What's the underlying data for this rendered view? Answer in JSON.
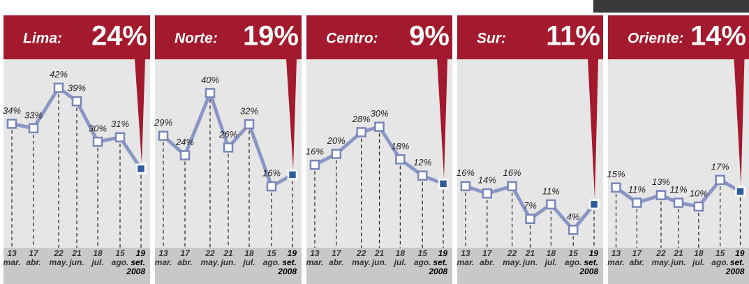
{
  "chart_data": [
    {
      "type": "line",
      "title": "Lima:",
      "categories": [
        "13\nmar.",
        "17\nabr.",
        "22\nmay.",
        "21\njun.",
        "18\njul.",
        "15\nago.",
        "19\nset.\n2008"
      ],
      "series": [
        {
          "color": "#8a97c4",
          "values": [
            34,
            33,
            42,
            39,
            30,
            31,
            24
          ],
          "value_labels": [
            "34%",
            "33%",
            "42%",
            "39%",
            "30%",
            "31%",
            "24%"
          ]
        }
      ],
      "ylim": [
        8,
        46
      ]
    },
    {
      "type": "line",
      "title": "Norte:",
      "categories": [
        "13\nmar.",
        "17\nabr.",
        "22\nmay.",
        "21\njun.",
        "18\njul.",
        "15\nago.",
        "19\nset.\n2008"
      ],
      "series": [
        {
          "color": "#8a97c4",
          "values": [
            29,
            24,
            40,
            26,
            32,
            16,
            19
          ],
          "value_labels": [
            "29%",
            "24%",
            "40%",
            "26%",
            "32%",
            "16%",
            "19%"
          ]
        }
      ],
      "ylim": [
        2,
        46
      ]
    },
    {
      "type": "line",
      "title": "Centro:",
      "categories": [
        "13\nmar.",
        "17\nabr.",
        "22\nmay.",
        "21\njun.",
        "18\njul.",
        "15\nago.",
        "19\nset.\n2008"
      ],
      "series": [
        {
          "color": "#8a97c4",
          "values": [
            16,
            20,
            28,
            30,
            18,
            12,
            9
          ],
          "value_labels": [
            "16%",
            "20%",
            "28%",
            "30%",
            "18%",
            "12%",
            "9%"
          ]
        }
      ],
      "ylim": [
        -12,
        51
      ]
    },
    {
      "type": "line",
      "title": "Sur:",
      "categories": [
        "13\nmar.",
        "17\nabr.",
        "22\nmay.",
        "21\njun.",
        "18\njul.",
        "15\nago.",
        "19\nset.\n2008"
      ],
      "series": [
        {
          "color": "#8a97c4",
          "values": [
            16,
            14,
            16,
            7,
            11,
            4,
            11
          ],
          "value_labels": [
            "16%",
            "14%",
            "16%",
            "7%",
            "11%",
            "4%",
            "11%"
          ]
        }
      ],
      "ylim": [
        1,
        48
      ]
    },
    {
      "type": "line",
      "title": "Oriente:",
      "categories": [
        "13\nmar.",
        "17\nabr.",
        "22\nmay.",
        "21\njun.",
        "18\njul.",
        "15\nago.",
        "19\nset.\n2008"
      ],
      "series": [
        {
          "color": "#8a97c4",
          "values": [
            15,
            11,
            13,
            11,
            10,
            17,
            14
          ],
          "value_labels": [
            "15%",
            "11%",
            "13%",
            "11%",
            "10%",
            "17%",
            "14%"
          ]
        }
      ],
      "ylim": [
        1,
        46
      ]
    }
  ]
}
